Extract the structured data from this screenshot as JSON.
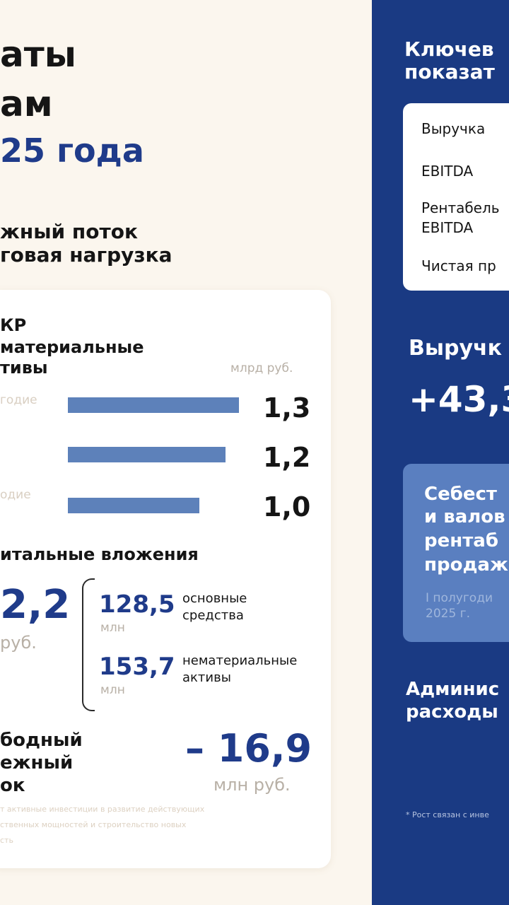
{
  "left": {
    "title_lines": [
      "аты",
      "ам",
      "25 года"
    ],
    "subtitle_lines": [
      "жный поток",
      "говая нагрузка"
    ],
    "card": {
      "title_lines": [
        "КР",
        "материальные",
        "тивы"
      ],
      "unit": "млрд руб.",
      "bars": [
        {
          "label": "годие",
          "value": 1.3,
          "value_text": "1,3"
        },
        {
          "label": "",
          "value": 1.2,
          "value_text": "1,2"
        },
        {
          "label": "одие",
          "value": 1.0,
          "value_text": "1,0"
        }
      ],
      "bar_max": 1.3,
      "capex": {
        "title": "итальные вложения",
        "total": "2,2",
        "total_unit": "руб.",
        "items": [
          {
            "value": "128,5",
            "unit": "млн",
            "label_lines": [
              "основные",
              "средства"
            ]
          },
          {
            "value": "153,7",
            "unit": "млн",
            "label_lines": [
              "нематериальные",
              "активы"
            ]
          }
        ]
      },
      "fcf": {
        "label_lines": [
          "бодный",
          "ежный",
          "ок"
        ],
        "value": "– 16,9",
        "unit": "млн руб."
      },
      "footnote_lines": [
        "т активные инвестиции в развитие действующих",
        "ственных мощностей и строительство новых",
        "сть"
      ]
    }
  },
  "right": {
    "title_lines": [
      "Ключев",
      "показат"
    ],
    "key_metrics": [
      "Выручка",
      "EBITDA",
      "Рентабель",
      "EBITDA",
      "Чистая пр"
    ],
    "revenue": {
      "title": "Выручк",
      "value": "+43,3"
    },
    "cost_box": {
      "lines": [
        "Себест",
        "и валов",
        "рентаб",
        "продаж"
      ],
      "sub_lines": [
        "I полугоди",
        "2025 г."
      ]
    },
    "admin_lines": [
      "Админис",
      "расходы"
    ],
    "footnote": "* Рост связан с инве"
  },
  "colors": {
    "background": "#fbf6ee",
    "accent_blue": "#1f3b8a",
    "panel_blue": "#1a3a83",
    "bar_blue": "#5d81ba"
  }
}
